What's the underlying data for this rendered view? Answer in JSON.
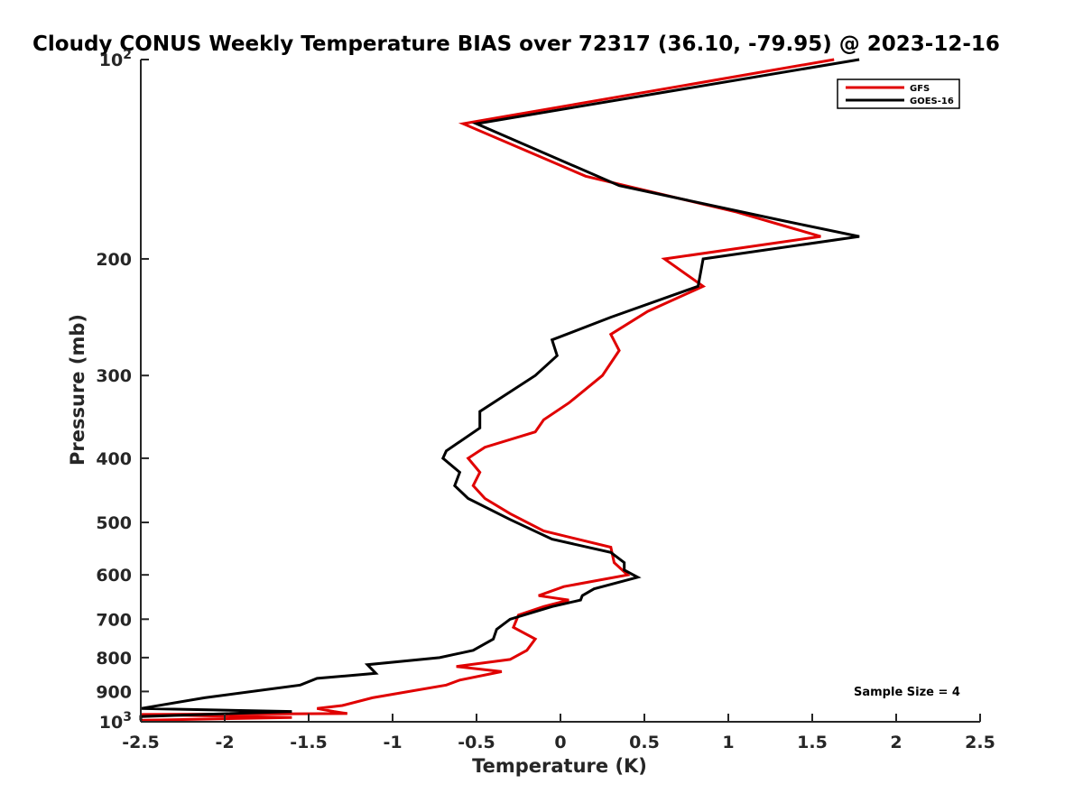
{
  "chart_data": {
    "type": "line",
    "title": "Cloudy CONUS Weekly Temperature BIAS over 72317 (36.10, -79.95) @ 2023-12-16",
    "xlabel": "Temperature (K)",
    "ylabel": "Pressure (mb)",
    "xlim": [
      -2.5,
      2.5
    ],
    "ylim": [
      100,
      1000
    ],
    "yscale": "log",
    "y_reversed": true,
    "grid": false,
    "legend_position": "top-right",
    "x_ticks": [
      "-2.5",
      "-2",
      "-1.5",
      "-1",
      "-0.5",
      "0",
      "0.5",
      "1",
      "1.5",
      "2",
      "2.5"
    ],
    "x_tick_values": [
      -2.5,
      -2,
      -1.5,
      -1,
      -0.5,
      0,
      0.5,
      1,
      1.5,
      2,
      2.5
    ],
    "y_ticks": [
      {
        "value": 100,
        "base": "10",
        "exp": "2"
      },
      {
        "value": 200,
        "label": "200"
      },
      {
        "value": 300,
        "label": "300"
      },
      {
        "value": 400,
        "label": "400"
      },
      {
        "value": 500,
        "label": "500"
      },
      {
        "value": 600,
        "label": "600"
      },
      {
        "value": 700,
        "label": "700"
      },
      {
        "value": 800,
        "label": "800"
      },
      {
        "value": 900,
        "label": "900"
      },
      {
        "value": 1000,
        "base": "10",
        "exp": "3"
      }
    ],
    "annotation": "Sample Size = 4",
    "series": [
      {
        "name": "GFS",
        "color": "#e00000",
        "points": [
          [
            1.63,
            100
          ],
          [
            -0.58,
            125
          ],
          [
            0.15,
            150
          ],
          [
            1.05,
            170
          ],
          [
            1.55,
            185
          ],
          [
            0.62,
            200
          ],
          [
            0.85,
            220
          ],
          [
            0.52,
            240
          ],
          [
            0.3,
            260
          ],
          [
            0.35,
            275
          ],
          [
            0.25,
            300
          ],
          [
            0.05,
            330
          ],
          [
            -0.1,
            350
          ],
          [
            -0.15,
            365
          ],
          [
            -0.45,
            385
          ],
          [
            -0.55,
            400
          ],
          [
            -0.48,
            420
          ],
          [
            -0.52,
            440
          ],
          [
            -0.45,
            460
          ],
          [
            -0.3,
            485
          ],
          [
            -0.1,
            515
          ],
          [
            0.3,
            545
          ],
          [
            0.32,
            575
          ],
          [
            0.4,
            600
          ],
          [
            0.02,
            625
          ],
          [
            -0.13,
            645
          ],
          [
            0.05,
            655
          ],
          [
            -0.1,
            670
          ],
          [
            -0.25,
            690
          ],
          [
            -0.28,
            720
          ],
          [
            -0.15,
            750
          ],
          [
            -0.2,
            780
          ],
          [
            -0.3,
            805
          ],
          [
            -0.62,
            825
          ],
          [
            -0.35,
            840
          ],
          [
            -0.6,
            865
          ],
          [
            -0.68,
            880
          ],
          [
            -1.12,
            920
          ],
          [
            -1.3,
            945
          ],
          [
            -1.45,
            955
          ],
          [
            -1.35,
            965
          ],
          [
            -1.27,
            972
          ],
          [
            -2.5,
            975
          ],
          [
            -1.6,
            985
          ],
          [
            -2.5,
            995
          ]
        ]
      },
      {
        "name": "GOES-16",
        "color": "#000000",
        "points": [
          [
            1.78,
            100
          ],
          [
            -0.5,
            125
          ],
          [
            0.35,
            155
          ],
          [
            1.32,
            175
          ],
          [
            1.78,
            185
          ],
          [
            0.85,
            200
          ],
          [
            0.82,
            220
          ],
          [
            0.3,
            245
          ],
          [
            -0.05,
            265
          ],
          [
            -0.02,
            280
          ],
          [
            -0.15,
            300
          ],
          [
            -0.48,
            340
          ],
          [
            -0.48,
            360
          ],
          [
            -0.68,
            390
          ],
          [
            -0.7,
            400
          ],
          [
            -0.6,
            420
          ],
          [
            -0.63,
            440
          ],
          [
            -0.55,
            460
          ],
          [
            -0.3,
            495
          ],
          [
            -0.05,
            530
          ],
          [
            0.3,
            555
          ],
          [
            0.38,
            575
          ],
          [
            0.38,
            590
          ],
          [
            0.46,
            605
          ],
          [
            0.2,
            630
          ],
          [
            0.13,
            645
          ],
          [
            0.12,
            655
          ],
          [
            -0.05,
            670
          ],
          [
            -0.3,
            700
          ],
          [
            -0.38,
            725
          ],
          [
            -0.4,
            750
          ],
          [
            -0.52,
            780
          ],
          [
            -0.72,
            800
          ],
          [
            -1.15,
            820
          ],
          [
            -1.1,
            845
          ],
          [
            -1.45,
            860
          ],
          [
            -1.55,
            880
          ],
          [
            -2.12,
            920
          ],
          [
            -2.5,
            955
          ],
          [
            -1.6,
            965
          ],
          [
            -2.5,
            982
          ],
          [
            -2.5,
            995
          ]
        ]
      }
    ]
  }
}
